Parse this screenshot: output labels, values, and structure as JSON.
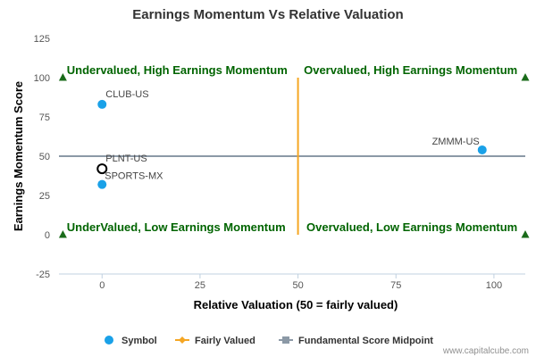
{
  "chart_data": {
    "type": "scatter",
    "title": "Earnings Momentum Vs Relative Valuation",
    "xlabel": "Relative Valuation (50 = fairly valued)",
    "ylabel": "Earnings Momentum Score",
    "xlim": [
      -11,
      108
    ],
    "ylim": [
      -25,
      125
    ],
    "x_ticks": [
      0,
      25,
      50,
      75,
      100
    ],
    "y_ticks": [
      -25,
      0,
      25,
      50,
      75,
      100,
      125
    ],
    "grid": false,
    "legend_position": "bottom",
    "points": [
      {
        "label": "CLUB-US",
        "x": 0,
        "y": 83,
        "style": "filled"
      },
      {
        "label": "PLNT-US",
        "x": 0,
        "y": 42,
        "style": "hollow"
      },
      {
        "label": "SPORTS-MX",
        "x": 0,
        "y": 32,
        "style": "filled"
      },
      {
        "label": "ZMMM-US",
        "x": 97,
        "y": 54,
        "style": "filled"
      }
    ],
    "fairly_valued_line": {
      "x": 50,
      "y_from": 0,
      "y_to": 100
    },
    "midpoint_line": {
      "y": 50
    },
    "corner_markers": [
      {
        "x": -10,
        "y": 100
      },
      {
        "x": 108,
        "y": 100
      },
      {
        "x": -10,
        "y": 0
      },
      {
        "x": 108,
        "y": 0
      }
    ],
    "quadrant_labels": [
      {
        "text": "Undervalued, High Earnings Momentum",
        "x": -9,
        "y": 100,
        "anchor": "start"
      },
      {
        "text": "Overvalued, High Earnings Momentum",
        "x": 106,
        "y": 100,
        "anchor": "end"
      },
      {
        "text": "UnderValued, Low Earnings Momentum",
        "x": -9,
        "y": 0,
        "anchor": "start"
      },
      {
        "text": "Overvalued, Low Earnings Momentum",
        "x": 106,
        "y": 0,
        "anchor": "end"
      }
    ],
    "legend": [
      {
        "name": "Symbol",
        "marker": "circle"
      },
      {
        "name": "Fairly Valued",
        "marker": "diamond-line"
      },
      {
        "name": "Fundamental Score Midpoint",
        "marker": "square-line"
      }
    ]
  },
  "colors": {
    "point": "#1aa1e8",
    "fairly_valued": "#f5a623",
    "midpoint": "#8c99a6",
    "quadrant_text": "#006400",
    "corner_marker": "#1a6b1a"
  },
  "credit": "www.capitalcube.com"
}
